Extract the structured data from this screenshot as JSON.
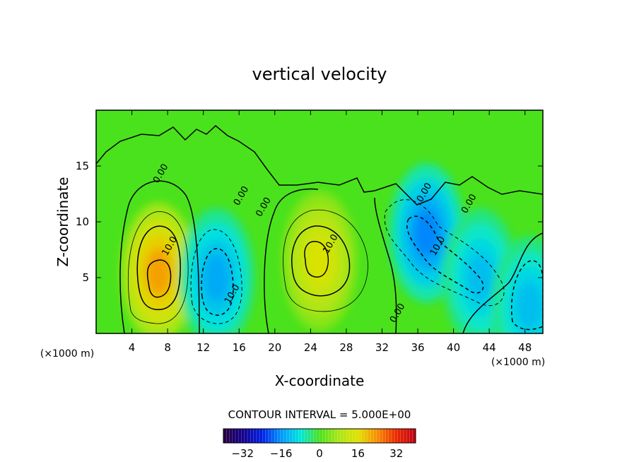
{
  "chart_data": {
    "type": "heatmap",
    "title": "vertical velocity",
    "xlabel": "X-coordinate",
    "ylabel": "Z-coordinate",
    "x_unit_left": "(×1000 m)",
    "x_unit_right": "(×1000 m)",
    "xlim": [
      0,
      50
    ],
    "ylim": [
      0,
      20
    ],
    "x_ticks": [
      4,
      8,
      12,
      16,
      20,
      24,
      28,
      32,
      36,
      40,
      44,
      48
    ],
    "y_ticks": [
      5,
      10,
      15
    ],
    "contour_interval_text": "CONTOUR INTERVAL = 5.000E+00",
    "contour_interval": 5.0,
    "contour_labels": [
      {
        "text": "0.00",
        "x": 7.5,
        "y": 14.2
      },
      {
        "text": "0.00",
        "x": 16.5,
        "y": 12.2
      },
      {
        "text": "0.00",
        "x": 19.0,
        "y": 11.2
      },
      {
        "text": "0.00",
        "x": 34.0,
        "y": 1.7
      },
      {
        "text": "0.00",
        "x": 37.0,
        "y": 12.5
      },
      {
        "text": "0.00",
        "x": 42.0,
        "y": 11.5
      },
      {
        "text": "10.0",
        "x": 8.5,
        "y": 7.7
      },
      {
        "text": "10.0",
        "x": 26.5,
        "y": 7.9
      },
      {
        "text": "10.0",
        "x": 15.5,
        "y": 3.4
      },
      {
        "text": "10.0",
        "x": 38.5,
        "y": 7.7
      }
    ],
    "features": [
      {
        "kind": "updraft",
        "x": 7.0,
        "y": 5.5,
        "peak": 22
      },
      {
        "kind": "downdraft",
        "x": 13.5,
        "y": 5.0,
        "peak": -14
      },
      {
        "kind": "updraft",
        "x": 25.0,
        "y": 6.5,
        "peak": 15
      },
      {
        "kind": "downdraft",
        "x": 37.0,
        "y": 9.0,
        "peak": -17
      },
      {
        "kind": "downdraft",
        "x": 43.0,
        "y": 5.0,
        "peak": -12
      },
      {
        "kind": "downdraft",
        "x": 48.5,
        "y": 2.5,
        "peak": -12
      }
    ],
    "colorbar": {
      "min": -40,
      "max": 40,
      "ticks": [
        -32,
        -16,
        0,
        16,
        32
      ],
      "tick_labels": [
        "−32",
        "−16",
        "0",
        "16",
        "32"
      ]
    },
    "grid": false,
    "legend": "colorbar-bottom"
  }
}
